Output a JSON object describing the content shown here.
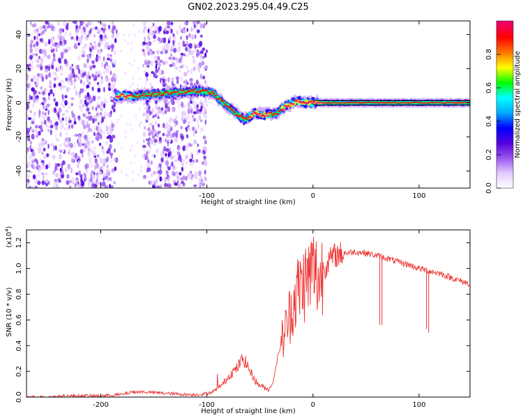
{
  "title": "GN02.2023.295.04.49.C25",
  "colors": {
    "snr_line": "#ee3333",
    "fringe_line": "#000000",
    "colormap": [
      "#ffffff",
      "#e3c8ff",
      "#9955ee",
      "#5500dd",
      "#0000ff",
      "#00aaff",
      "#00ffff",
      "#00ff00",
      "#ffff00",
      "#ff7700",
      "#ff0000",
      "#ee0077"
    ]
  },
  "chart_data": [
    {
      "type": "heatmap",
      "title": "",
      "xlabel": "Height of straight line (km)",
      "ylabel": "Frequency (Hz)",
      "xlim": [
        -270,
        148
      ],
      "ylim": [
        -50,
        48
      ],
      "xticks": [
        -200,
        -100,
        0,
        100
      ],
      "yticks": [
        -40,
        -20,
        0,
        20,
        40
      ],
      "colorbar": {
        "label": "Normalized spectral amplitude",
        "range": [
          0.0,
          1.0
        ],
        "ticks": [
          0.0,
          0.2,
          0.4,
          0.6,
          0.8
        ]
      },
      "ridge": {
        "x": [
          -185,
          -170,
          -150,
          -130,
          -110,
          -95,
          -85,
          -75,
          -65,
          -55,
          -45,
          -35,
          -25,
          -15,
          -5,
          5,
          20,
          40,
          60,
          80,
          100,
          120,
          148
        ],
        "y": [
          4,
          4,
          5,
          6,
          7,
          6,
          0,
          -5,
          -10,
          -6,
          -7,
          -6,
          -2,
          1,
          0,
          0,
          0,
          0,
          0,
          0,
          0,
          0,
          0
        ]
      },
      "fringe_line": {
        "x_start": 0,
        "x_end": 148,
        "y": 0
      },
      "noise_regions": [
        [
          -270,
          -185
        ],
        [
          -160,
          -100
        ]
      ]
    },
    {
      "type": "line",
      "title": "",
      "xlabel": "Height of straight line (km)",
      "ylabel": "SNR (10 * v/v)",
      "y_multiplier": "(x10",
      "y_multiplier_exp": "4",
      "y_multiplier_close": ")",
      "xlim": [
        -270,
        148
      ],
      "ylim": [
        0,
        1.3
      ],
      "xticks": [
        -200,
        -100,
        0,
        100
      ],
      "yticks": [
        0.0,
        0.2,
        0.4,
        0.6,
        0.8,
        1.0,
        1.2
      ],
      "series": [
        {
          "x": [
            -270,
            -250,
            -230,
            -200,
            -180,
            -170,
            -160,
            -140,
            -120,
            -105,
            -95,
            -85,
            -78,
            -72,
            -66,
            -62,
            -58,
            -52,
            -47,
            -42,
            -38,
            -34,
            -30,
            -25,
            -20,
            -15,
            -10,
            -5,
            0,
            3,
            6,
            10,
            15,
            20,
            30,
            40,
            50,
            60,
            70,
            80,
            90,
            100,
            110,
            120,
            130,
            140,
            148
          ],
          "y": [
            0.0,
            0.0,
            0.01,
            0.01,
            0.02,
            0.04,
            0.04,
            0.03,
            0.02,
            0.02,
            0.04,
            0.1,
            0.18,
            0.22,
            0.3,
            0.25,
            0.18,
            0.1,
            0.08,
            0.06,
            0.1,
            0.28,
            0.42,
            0.55,
            0.7,
            0.82,
            0.88,
            0.92,
            1.0,
            0.95,
            0.9,
            1.0,
            1.06,
            1.1,
            1.12,
            1.13,
            1.12,
            1.1,
            1.08,
            1.05,
            1.03,
            1.0,
            0.98,
            0.96,
            0.93,
            0.9,
            0.88
          ]
        }
      ],
      "spikes": [
        {
          "x": 63,
          "y": 0.56
        },
        {
          "x": 65,
          "y": 0.56
        },
        {
          "x": 107,
          "y": 0.53
        },
        {
          "x": 109,
          "y": 0.5
        }
      ]
    }
  ]
}
